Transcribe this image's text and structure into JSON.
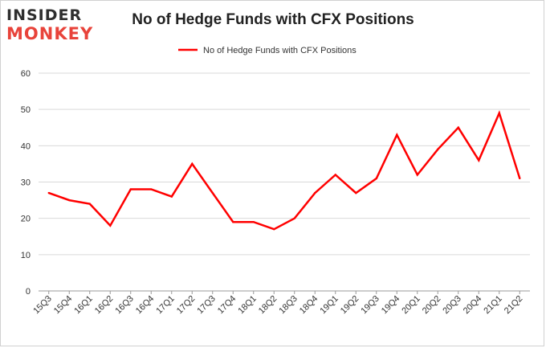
{
  "logo": {
    "line1": "INSIDER",
    "line2": "MONKEY"
  },
  "colors": {
    "series": "#ff0000",
    "grid": "#d9d9d9",
    "axis": "#999999"
  },
  "chart_data": {
    "type": "line",
    "title": "No of Hedge Funds with CFX Positions",
    "xlabel": "",
    "ylabel": "",
    "ylim": [
      0,
      60
    ],
    "yticks": [
      0,
      10,
      20,
      30,
      40,
      50,
      60
    ],
    "grid": true,
    "legend": "top-center",
    "categories": [
      "15Q3",
      "15Q4",
      "16Q1",
      "16Q2",
      "16Q3",
      "16Q4",
      "17Q1",
      "17Q2",
      "17Q3",
      "17Q4",
      "18Q1",
      "18Q2",
      "18Q3",
      "18Q4",
      "19Q1",
      "19Q2",
      "19Q3",
      "19Q4",
      "20Q1",
      "20Q2",
      "20Q3",
      "20Q4",
      "21Q1",
      "21Q2"
    ],
    "series": [
      {
        "name": "No of Hedge Funds with CFX Positions",
        "values": [
          27,
          25,
          24,
          18,
          28,
          28,
          26,
          35,
          27,
          19,
          19,
          17,
          20,
          27,
          32,
          27,
          31,
          43,
          32,
          39,
          45,
          36,
          49,
          31
        ]
      }
    ]
  }
}
